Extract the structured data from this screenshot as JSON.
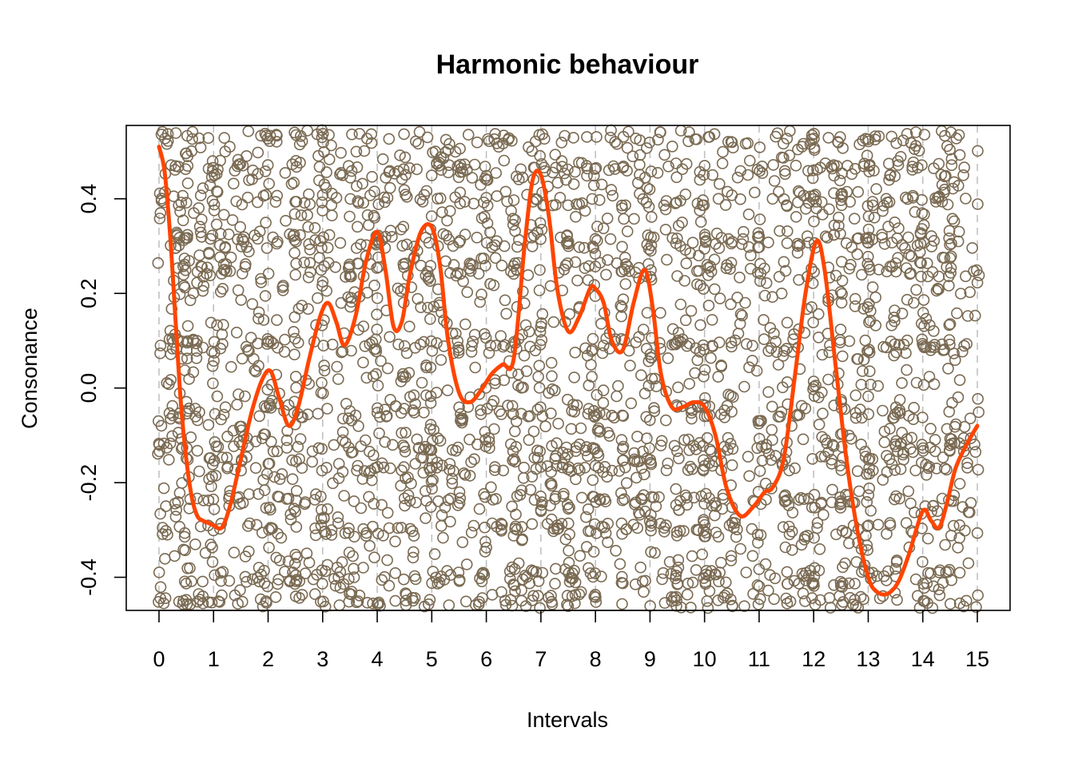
{
  "chart_data": {
    "type": "scatter",
    "title": "Harmonic behaviour",
    "xlabel": "Intervals",
    "ylabel": "Consonance",
    "xlim": [
      -0.6,
      15.6
    ],
    "ylim": [
      -0.47,
      0.555
    ],
    "x_ticks": [
      0,
      1,
      2,
      3,
      4,
      5,
      6,
      7,
      8,
      9,
      10,
      11,
      12,
      13,
      14,
      15
    ],
    "x_tick_labels": [
      "0",
      "1",
      "2",
      "3",
      "4",
      "5",
      "6",
      "7",
      "8",
      "9",
      "10",
      "11",
      "12",
      "13",
      "14",
      "15"
    ],
    "y_ticks": [
      -0.4,
      -0.2,
      0.0,
      0.2,
      0.4
    ],
    "y_tick_labels": [
      "-0.4",
      "-0.2",
      "0.0",
      "0.2",
      "0.4"
    ],
    "grid": "vertical dashed lines at integer intervals",
    "legend": "none",
    "colors": {
      "points": "#7a6a52",
      "curve": "#ff4500",
      "grid": "#bdbdbd",
      "axis": "#000000"
    },
    "points_note": "dense scatter of ~3000 points spread over x 0–15 and y -0.46–0.53, with denser bands near 0.09, -0.05, -0.16, -0.30, -0.40",
    "point_bands_y": [
      0.53,
      0.46,
      0.4,
      0.31,
      0.25,
      0.09,
      -0.05,
      -0.12,
      -0.16,
      -0.24,
      -0.3,
      -0.4,
      -0.45
    ],
    "series": [
      {
        "type": "line",
        "x": [
          0,
          0.1,
          0.2,
          0.3,
          0.4,
          0.5,
          0.6,
          0.7,
          0.8,
          0.9,
          1.0,
          1.15,
          1.3,
          1.5,
          1.7,
          1.9,
          2.05,
          2.2,
          2.38,
          2.55,
          2.75,
          2.95,
          3.1,
          3.25,
          3.4,
          3.6,
          3.8,
          4.0,
          4.15,
          4.3,
          4.45,
          4.6,
          4.8,
          5.0,
          5.15,
          5.3,
          5.5,
          5.7,
          5.9,
          6.1,
          6.3,
          6.5,
          6.7,
          6.85,
          7.0,
          7.15,
          7.3,
          7.5,
          7.7,
          7.9,
          8.0,
          8.15,
          8.3,
          8.5,
          8.7,
          8.9,
          9.05,
          9.2,
          9.4,
          9.6,
          9.8,
          10.0,
          10.2,
          10.4,
          10.65,
          10.9,
          11.1,
          11.25,
          11.45,
          11.65,
          11.85,
          12.05,
          12.2,
          12.4,
          12.6,
          12.8,
          13.0,
          13.15,
          13.35,
          13.55,
          13.75,
          14.0,
          14.15,
          14.3,
          14.45,
          14.6,
          14.8,
          15.0
        ],
        "y": [
          0.51,
          0.46,
          0.33,
          0.15,
          -0.03,
          -0.15,
          -0.23,
          -0.27,
          -0.28,
          -0.285,
          -0.29,
          -0.295,
          -0.25,
          -0.15,
          -0.05,
          0.02,
          0.035,
          -0.02,
          -0.08,
          -0.04,
          0.06,
          0.15,
          0.18,
          0.14,
          0.09,
          0.15,
          0.27,
          0.33,
          0.25,
          0.13,
          0.14,
          0.24,
          0.33,
          0.34,
          0.26,
          0.1,
          -0.01,
          -0.03,
          -0.005,
          0.03,
          0.05,
          0.06,
          0.3,
          0.44,
          0.45,
          0.36,
          0.21,
          0.12,
          0.15,
          0.21,
          0.21,
          0.18,
          0.1,
          0.08,
          0.18,
          0.25,
          0.17,
          0.03,
          -0.04,
          -0.04,
          -0.03,
          -0.04,
          -0.1,
          -0.21,
          -0.27,
          -0.25,
          -0.22,
          -0.21,
          -0.15,
          0.02,
          0.2,
          0.31,
          0.25,
          0.05,
          -0.15,
          -0.3,
          -0.4,
          -0.43,
          -0.435,
          -0.41,
          -0.35,
          -0.26,
          -0.28,
          -0.295,
          -0.24,
          -0.17,
          -0.12,
          -0.08
        ]
      }
    ]
  }
}
